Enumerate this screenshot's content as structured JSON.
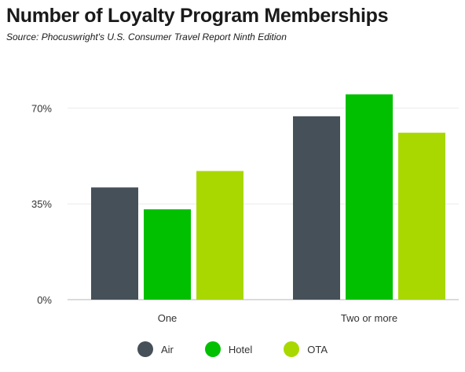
{
  "title": "Number of Loyalty Program Memberships",
  "subtitle": "Source: Phocuswright's U.S. Consumer Travel Report Ninth Edition",
  "chart_data": {
    "type": "bar",
    "categories": [
      "One",
      "Two or more"
    ],
    "series": [
      {
        "name": "Air",
        "color": "#465058",
        "values": [
          41,
          67
        ]
      },
      {
        "name": "Hotel",
        "color": "#00c000",
        "values": [
          33,
          75
        ]
      },
      {
        "name": "OTA",
        "color": "#a8d800",
        "values": [
          47,
          61
        ]
      }
    ],
    "ylim": [
      0,
      73
    ],
    "yticks": [
      0,
      35,
      70
    ],
    "ytick_labels": [
      "0%",
      "35%",
      "70%"
    ],
    "grid": true,
    "legend_position": "bottom-center",
    "title": "Number of Loyalty Program Memberships",
    "xlabel": "",
    "ylabel": ""
  }
}
